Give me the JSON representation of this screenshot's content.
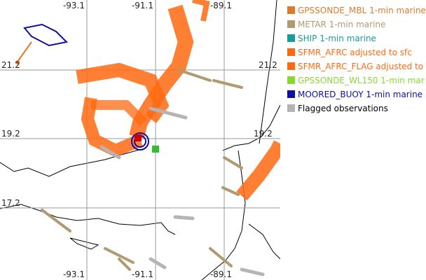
{
  "map": {
    "lon_labels_top": [
      "-93.1",
      "-91.1",
      "-89.1"
    ],
    "lon_labels_bottom": [
      "-93.1",
      "-91.1",
      "-89.1"
    ],
    "lat_labels_left": [
      "21.2",
      "19.2",
      "17.2"
    ],
    "lat_labels_right": [
      "21.2",
      "19.2"
    ]
  },
  "legend": [
    {
      "label": "GPSSONDE_MBL 1-min marine",
      "color": "#e07a28"
    },
    {
      "label": "METAR 1-min marine",
      "color": "#b09a70"
    },
    {
      "label": "SHIP 1-min marine",
      "color": "#169c9c"
    },
    {
      "label": "SFMR_AFRC adjusted to sfc",
      "color": "#ff6a10"
    },
    {
      "label": "SFMR_AFRC_FLAG adjusted to",
      "color": "#ff6a10"
    },
    {
      "label": "GPSSONDE_WL150 1-min mar",
      "color": "#88d830"
    },
    {
      "label": "MOORED_BUOY 1-min marine",
      "color": "#1010a0"
    },
    {
      "label": "Flagged observations",
      "color": "#b4b4b4"
    }
  ]
}
